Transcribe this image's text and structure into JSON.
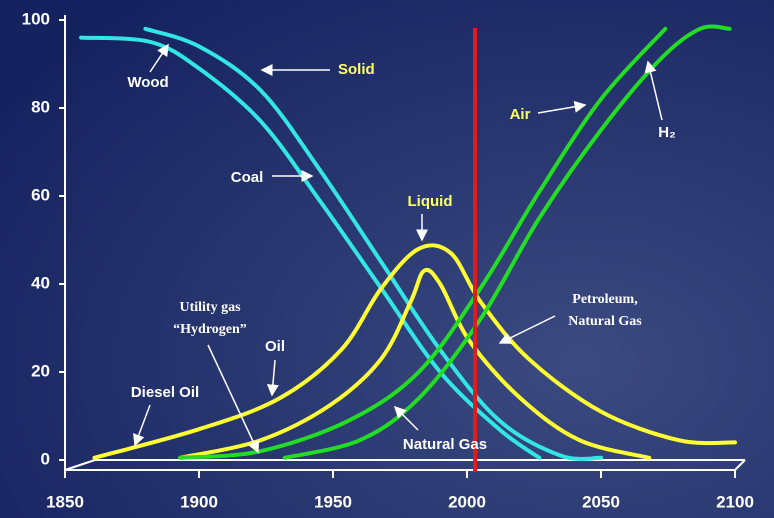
{
  "chart_data": {
    "type": "line",
    "xlim": [
      1850,
      2100
    ],
    "ylim": [
      0,
      100
    ],
    "xticks": [
      1850,
      1900,
      1950,
      2000,
      2050,
      2100
    ],
    "yticks": [
      0,
      20,
      40,
      60,
      80,
      100
    ],
    "vline": {
      "x": 2003,
      "color": "#e01b1b"
    },
    "series": [
      {
        "color": "#33e6e6",
        "x": [
          1856,
          1882,
          1900,
          1923,
          1945,
          1968,
          1990,
          2012,
          2027
        ],
        "values": [
          96,
          95,
          89,
          77,
          59,
          39,
          20,
          7,
          0.5
        ]
      },
      {
        "color": "#33e6e6",
        "x": [
          1880,
          1900,
          1923,
          1945,
          1968,
          1990,
          2012,
          2035,
          2050
        ],
        "values": [
          98,
          94,
          84,
          66,
          45,
          25,
          9,
          1,
          0.5
        ]
      },
      {
        "color": "#ffff33",
        "x": [
          1861,
          1900,
          1930,
          1953,
          1968,
          1982,
          1994,
          2005,
          2023,
          2050,
          2079,
          2100
        ],
        "values": [
          0.5,
          7,
          14,
          25,
          39,
          48,
          47,
          36,
          23,
          11,
          4.5,
          4
        ]
      },
      {
        "color": "#ffff33",
        "x": [
          1893,
          1923,
          1949,
          1968,
          1979,
          1984,
          1990,
          2001,
          2020,
          2042,
          2068
        ],
        "values": [
          0.5,
          4.5,
          12.5,
          23,
          36,
          43,
          40,
          27,
          14,
          4.5,
          0.5
        ]
      },
      {
        "color": "#22dd22",
        "x": [
          1893,
          1923,
          1956,
          1982,
          2005,
          2027,
          2050,
          2074
        ],
        "values": [
          0.5,
          2,
          9,
          20,
          39,
          61,
          82,
          98
        ]
      },
      {
        "color": "#22dd22",
        "x": [
          1932,
          1960,
          1982,
          2005,
          2027,
          2050,
          2072,
          2087,
          2098
        ],
        "values": [
          0.5,
          4.5,
          14,
          32,
          55,
          75,
          91,
          98,
          98
        ]
      }
    ],
    "annotations": [
      {
        "lines": [
          "Solid"
        ],
        "color": "#ffff66"
      },
      {
        "lines": [
          "Wood"
        ],
        "color": "#ffffff"
      },
      {
        "lines": [
          "Coal"
        ],
        "color": "#ffffff"
      },
      {
        "lines": [
          "Liquid"
        ],
        "color": "#ffff66"
      },
      {
        "lines": [
          "Air"
        ],
        "color": "#ffff66"
      },
      {
        "lines": [
          "H₂"
        ],
        "color": "#ffffff"
      },
      {
        "lines": [
          "Petroleum,",
          "Natural Gas"
        ],
        "color": "#ffffff"
      },
      {
        "lines": [
          "Utility gas",
          "“Hydrogen”"
        ],
        "color": "#ffffff"
      },
      {
        "lines": [
          "Oil"
        ],
        "color": "#ffffff"
      },
      {
        "lines": [
          "Diesel Oil"
        ],
        "color": "#ffffff"
      },
      {
        "lines": [
          "Natural Gas"
        ],
        "color": "#ffffff"
      }
    ]
  }
}
